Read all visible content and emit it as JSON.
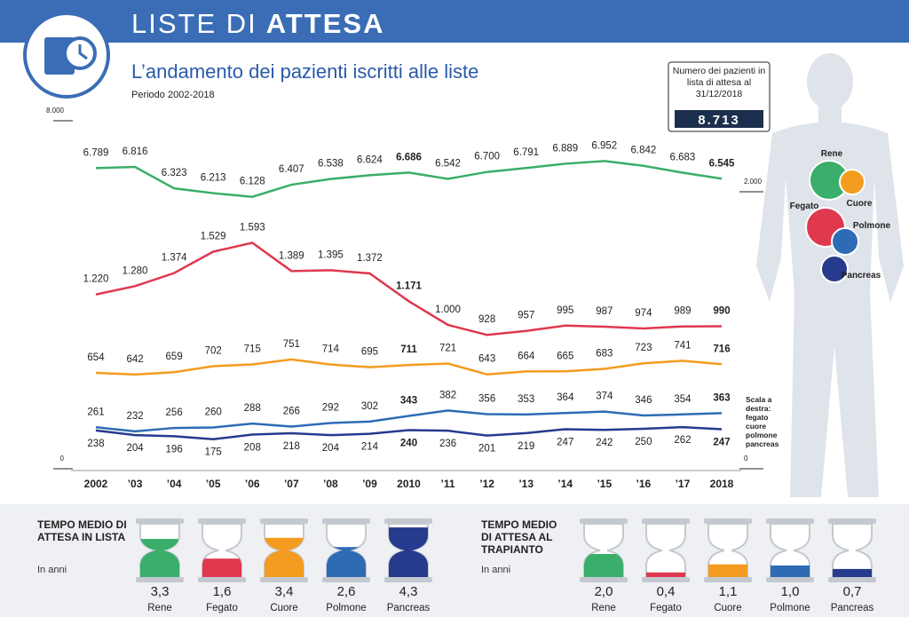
{
  "header": {
    "title_light": "LISTE DI",
    "title_bold": "ATTESA"
  },
  "chart_data": [
    {
      "type": "line",
      "title": "L’andamento dei pazienti iscritti alle liste",
      "subtitle": "Periodo 2002-2018",
      "callout": {
        "label": "Numero dei pazienti in lista di attesa al 31/12/2018",
        "value": 8713,
        "value_label": "8.713"
      },
      "right_axis_note": "Scala a destra: fegato cuore polmone pancreas",
      "categories": [
        "2002",
        "’03",
        "’04",
        "’05",
        "’06",
        "’07",
        "’08",
        "’09",
        "2010",
        "’11",
        "’12",
        "’13",
        "’14",
        "’15",
        "’16",
        "’17",
        "2018"
      ],
      "ylim": [
        0,
        8000
      ],
      "yticks": [
        0,
        {
          "value": 8000,
          "label": "8.000"
        }
      ],
      "y2lim": [
        0,
        2000
      ],
      "y2ticks": [
        0,
        {
          "value": 2000,
          "label": "2.000"
        }
      ],
      "series": [
        {
          "name": "Rene",
          "color": "#3aae6a",
          "values": [
            6789,
            6816,
            6323,
            6213,
            6128,
            6407,
            6538,
            6624,
            6686,
            6542,
            6700,
            6791,
            6889,
            6952,
            6842,
            6683,
            6545
          ],
          "value_labels": [
            "6.789",
            "6.816",
            "6.323",
            "6.213",
            "6.128",
            "6.407",
            "6.538",
            "6.624",
            "6.686",
            "6.542",
            "6.700",
            "6.791",
            "6.889",
            "6.952",
            "6.842",
            "6.683",
            "6.545"
          ]
        },
        {
          "name": "Fegato",
          "color": "#e0384e",
          "axis": "y2",
          "values": [
            1220,
            1280,
            1374,
            1529,
            1593,
            1389,
            1395,
            1372,
            1171,
            1000,
            928,
            957,
            995,
            987,
            974,
            989,
            990
          ],
          "value_labels": [
            "1.220",
            "1.280",
            "1.374",
            "1.529",
            "1.593",
            "1.389",
            "1.395",
            "1.372",
            "1.171",
            "1.000",
            "928",
            "957",
            "995",
            "987",
            "974",
            "989",
            "990"
          ]
        },
        {
          "name": "Cuore",
          "color": "#f39c1f",
          "axis": "y2",
          "values": [
            654,
            642,
            659,
            702,
            715,
            751,
            714,
            695,
            711,
            721,
            643,
            664,
            665,
            683,
            723,
            741,
            716
          ]
        },
        {
          "name": "Polmone",
          "color": "#2e6bb5",
          "axis": "y2",
          "values": [
            261,
            232,
            256,
            260,
            288,
            266,
            292,
            302,
            343,
            382,
            356,
            353,
            364,
            374,
            346,
            354,
            363
          ]
        },
        {
          "name": "Pancreas",
          "color": "#263a8e",
          "axis": "y2",
          "values": [
            238,
            204,
            196,
            175,
            208,
            218,
            204,
            214,
            240,
            236,
            201,
            219,
            247,
            242,
            250,
            262,
            247
          ]
        }
      ]
    },
    {
      "type": "hourglass",
      "title": "TEMPO MEDIO DI ATTESA IN LISTA",
      "subtitle": "In anni",
      "categories": [
        "Rene",
        "Fegato",
        "Cuore",
        "Polmone",
        "Pancreas"
      ],
      "colors": [
        "#3aae6a",
        "#e0384e",
        "#f39c1f",
        "#2e6bb5",
        "#263a8e"
      ],
      "values": [
        3.3,
        1.6,
        3.4,
        2.6,
        4.3
      ],
      "value_labels": [
        "3,3",
        "1,6",
        "3,4",
        "2,6",
        "4,3"
      ]
    },
    {
      "type": "hourglass",
      "title": "TEMPO MEDIO DI ATTESA AL TRAPIANTO",
      "subtitle": "In anni",
      "categories": [
        "Rene",
        "Fegato",
        "Cuore",
        "Polmone",
        "Pancreas"
      ],
      "colors": [
        "#3aae6a",
        "#e0384e",
        "#f39c1f",
        "#2e6bb5",
        "#263a8e"
      ],
      "values": [
        2.0,
        0.4,
        1.1,
        1.0,
        0.7
      ],
      "value_labels": [
        "2,0",
        "0,4",
        "1,1",
        "1,0",
        "0,7"
      ]
    }
  ]
}
